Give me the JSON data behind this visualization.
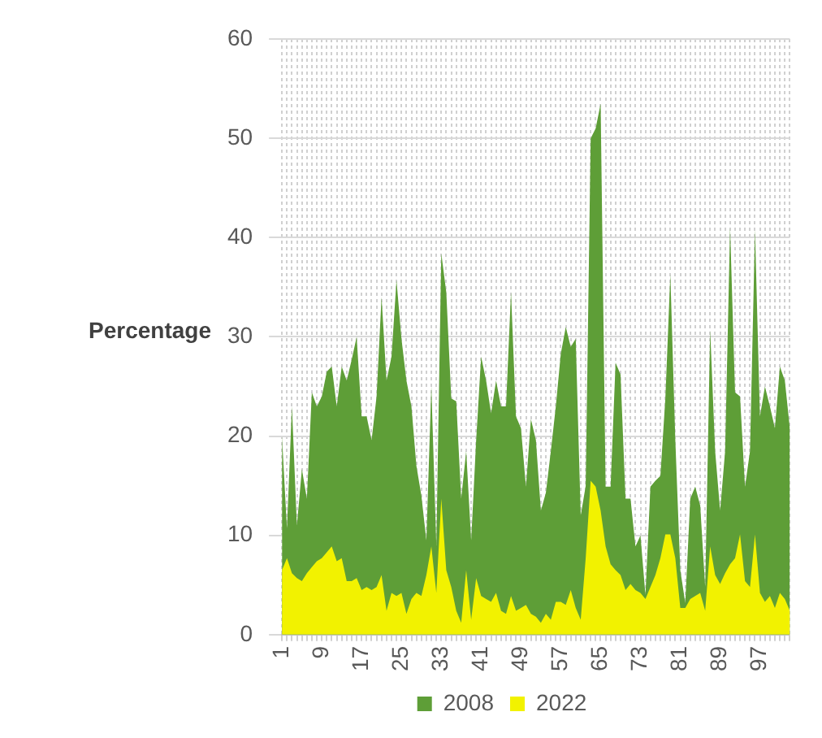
{
  "chart_data": {
    "type": "area",
    "ylabel": "Percentage",
    "categories": [
      "1",
      null,
      null,
      null,
      null,
      null,
      null,
      null,
      "9",
      null,
      null,
      null,
      null,
      null,
      null,
      null,
      "17",
      null,
      null,
      null,
      null,
      null,
      null,
      null,
      "25",
      null,
      null,
      null,
      null,
      null,
      null,
      null,
      "33",
      null,
      null,
      null,
      null,
      null,
      null,
      null,
      "41",
      null,
      null,
      null,
      null,
      null,
      null,
      null,
      "49",
      null,
      null,
      null,
      null,
      null,
      null,
      null,
      "57",
      null,
      null,
      null,
      null,
      null,
      null,
      null,
      "65",
      null,
      null,
      null,
      null,
      null,
      null,
      null,
      "73",
      null,
      null,
      null,
      null,
      null,
      null,
      null,
      "81",
      null,
      null,
      null,
      null,
      null,
      null,
      null,
      "89",
      null,
      null,
      null,
      null,
      null,
      null,
      null,
      "97",
      null,
      null,
      null,
      null,
      null,
      null
    ],
    "series": [
      {
        "name": "2008",
        "color": "#5e9e37",
        "values": [
          20,
          10.7,
          23,
          11,
          16.7,
          13.7,
          24.4,
          23,
          24,
          26.5,
          27,
          23,
          27,
          25.6,
          27.7,
          30,
          22,
          22,
          19.6,
          24,
          34,
          25.6,
          28,
          35.7,
          29.8,
          25.6,
          23,
          17,
          14,
          9.5,
          25,
          9,
          38.4,
          34.5,
          23.8,
          23.5,
          13.7,
          18.5,
          9.5,
          19.6,
          28,
          25.6,
          22.3,
          25.6,
          23,
          23,
          34.5,
          22,
          20.8,
          14.9,
          21.7,
          19.6,
          12.5,
          14.3,
          18.5,
          23,
          28.3,
          31,
          29,
          29.8,
          12,
          15,
          50,
          51,
          53.5,
          14.9,
          14.9,
          27.4,
          26.2,
          13.7,
          13.7,
          8.9,
          10,
          4,
          14.9,
          15.5,
          16,
          23.8,
          36.3,
          19.6,
          6.5,
          3.2,
          13.7,
          14.9,
          13,
          4.8,
          30.7,
          18.5,
          12.5,
          18.5,
          41,
          24.4,
          24,
          14.9,
          18.5,
          40.8,
          22,
          25,
          23,
          20.8,
          27,
          25.6,
          20.8
        ]
      },
      {
        "name": "2022",
        "color": "#f2f200",
        "values": [
          6.5,
          7.7,
          6.2,
          5.7,
          5.4,
          6.2,
          6.8,
          7.4,
          7.7,
          8.3,
          8.9,
          7.4,
          7.7,
          5.4,
          5.4,
          5.7,
          4.5,
          4.8,
          4.5,
          4.8,
          6,
          2.4,
          4.2,
          3.9,
          4.2,
          2.1,
          3.6,
          4.2,
          3.9,
          6,
          8.9,
          4.2,
          13.7,
          6.5,
          4.8,
          2.4,
          1.2,
          6.5,
          1.5,
          5.7,
          3.9,
          3.6,
          3.3,
          4.2,
          2.4,
          2.1,
          3.9,
          2.4,
          2.7,
          3,
          2.1,
          1.8,
          1.2,
          2.1,
          1.5,
          3.3,
          3.3,
          3,
          4.5,
          2.7,
          1.5,
          7.7,
          15.5,
          14.9,
          12.5,
          8.9,
          7.1,
          6.5,
          6,
          4.5,
          5.1,
          4.5,
          4.2,
          3.6,
          4.8,
          6,
          7.7,
          10.1,
          10.1,
          7.7,
          2.7,
          2.7,
          3.6,
          3.9,
          4.2,
          2.4,
          8.9,
          6,
          5.1,
          6.2,
          7.1,
          7.7,
          10.1,
          5.4,
          4.8,
          10.1,
          4.2,
          3.3,
          3.9,
          2.7,
          4.2,
          3.6,
          2.4
        ]
      }
    ],
    "ylim": [
      0,
      60
    ],
    "yticks": [
      0,
      10,
      20,
      30,
      40,
      50,
      60
    ],
    "grid": true,
    "legend": "bottom"
  }
}
